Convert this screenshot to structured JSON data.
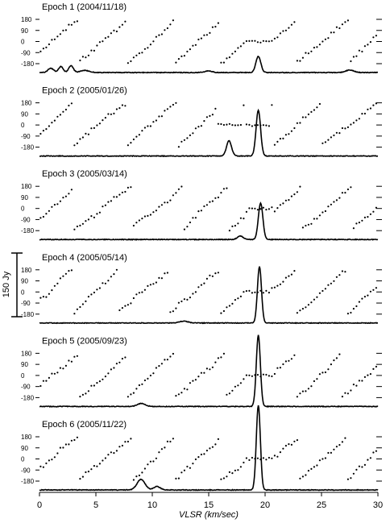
{
  "chart_data": {
    "type": "line",
    "xlabel": "VLSR (km/sec)",
    "xlim": [
      0,
      30
    ],
    "x_ticks": [
      0,
      5,
      10,
      15,
      20,
      25,
      30
    ],
    "phase_ticks": [
      180,
      90,
      0,
      -90,
      -180
    ],
    "phase_ylim": [
      -180,
      180
    ],
    "flux_scale_label": "150 Jy",
    "flux_scale_jy": 150,
    "panels": [
      {
        "title": "Epoch 1 (2004/11/18)",
        "spectrum_peaks": [
          {
            "center": 1.0,
            "height": 10,
            "width": 0.25
          },
          {
            "center": 1.9,
            "height": 14,
            "width": 0.2
          },
          {
            "center": 2.8,
            "height": 16,
            "width": 0.2
          },
          {
            "center": 4.0,
            "height": 5,
            "width": 0.4
          },
          {
            "center": 15.0,
            "height": 4,
            "width": 0.3
          },
          {
            "center": 19.4,
            "height": 38,
            "width": 0.22
          },
          {
            "center": 27.5,
            "height": 6,
            "width": 0.35
          }
        ],
        "phase_seed": 11
      },
      {
        "title": "Epoch 2 (2005/01/26)",
        "spectrum_peaks": [
          {
            "center": 16.8,
            "height": 36,
            "width": 0.22
          },
          {
            "center": 19.4,
            "height": 108,
            "width": 0.2
          }
        ],
        "phase_seed": 23
      },
      {
        "title": "Epoch 3 (2005/03/14)",
        "spectrum_peaks": [
          {
            "center": 17.8,
            "height": 8,
            "width": 0.25
          },
          {
            "center": 19.6,
            "height": 86,
            "width": 0.2
          }
        ],
        "phase_seed": 37
      },
      {
        "title": "Epoch 4 (2005/05/14)",
        "spectrum_peaks": [
          {
            "center": 12.8,
            "height": 4,
            "width": 0.4
          },
          {
            "center": 19.5,
            "height": 133,
            "width": 0.18
          }
        ],
        "phase_seed": 41
      },
      {
        "title": "Epoch 5 (2005/09/23)",
        "spectrum_peaks": [
          {
            "center": 9.0,
            "height": 7,
            "width": 0.35
          },
          {
            "center": 19.4,
            "height": 168,
            "width": 0.18
          }
        ],
        "phase_seed": 53
      },
      {
        "title": "Epoch 6 (2005/11/22)",
        "spectrum_peaks": [
          {
            "center": 9.0,
            "height": 25,
            "width": 0.35
          },
          {
            "center": 10.4,
            "height": 8,
            "width": 0.3
          },
          {
            "center": 19.4,
            "height": 200,
            "width": 0.18
          }
        ],
        "phase_seed": 67
      }
    ]
  }
}
